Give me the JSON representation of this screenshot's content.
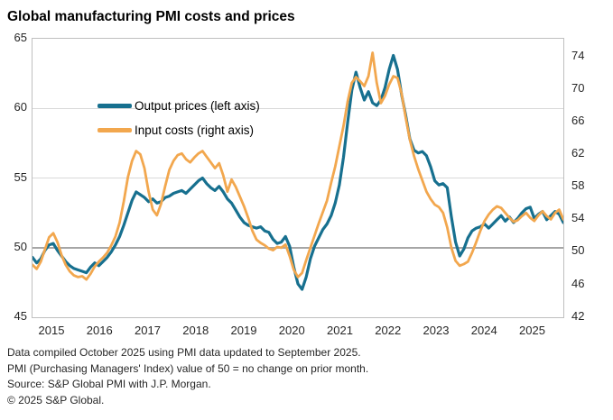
{
  "title": "Global manufacturing PMI costs and prices",
  "colors": {
    "output_prices": "#17708f",
    "input_costs": "#f2a74e",
    "gridline": "#d9d9d9",
    "baseline_50": "#a6a6a6",
    "plot_border": "#bfbfbf",
    "text": "#262626"
  },
  "legend": [
    {
      "label": "Output prices (left axis)",
      "series": "output_prices"
    },
    {
      "label": "Input costs (right axis)",
      "series": "input_costs"
    }
  ],
  "axes": {
    "left_ticks": [
      65,
      60,
      55,
      50,
      45
    ],
    "right_ticks": [
      74,
      70,
      66,
      62,
      58,
      54,
      50,
      46,
      42
    ],
    "years": [
      "2015",
      "2016",
      "2017",
      "2018",
      "2019",
      "2020",
      "2021",
      "2022",
      "2023",
      "2024",
      "2025"
    ],
    "left_range": [
      45,
      65
    ],
    "right_range": [
      42,
      74
    ],
    "baseline_value": 50
  },
  "footnotes": [
    "Data compiled October 2025 using PMI data updated to September 2025.",
    "PMI (Purchasing Managers' Index) value of 50 = no change on prior month.",
    "Source: S&P Global PMI with J.P. Morgan.",
    "© 2025 S&P Global."
  ],
  "chart_data": {
    "type": "line",
    "x_monthly": {
      "start": "2015-01",
      "end": "2025-09",
      "points": 129
    },
    "title": "Global manufacturing PMI costs and prices",
    "grid": "horizontal",
    "legend_position": "top-left-inside",
    "left_ylim": [
      45,
      65
    ],
    "right_ylim": [
      42,
      74
    ],
    "baseline": 50,
    "series": [
      {
        "name": "Output prices (left axis)",
        "axis": "left",
        "color": "#17708f",
        "values": [
          49.3,
          48.9,
          49.2,
          49.8,
          50.2,
          50.3,
          49.8,
          49.4,
          49.0,
          48.7,
          48.5,
          48.4,
          48.3,
          48.2,
          48.6,
          48.9,
          48.7,
          49.0,
          49.3,
          49.7,
          50.2,
          50.8,
          51.6,
          52.5,
          53.4,
          54.0,
          53.8,
          53.6,
          53.3,
          53.5,
          53.2,
          53.3,
          53.6,
          53.7,
          53.9,
          54.0,
          54.1,
          53.9,
          54.2,
          54.5,
          54.8,
          55.0,
          54.6,
          54.3,
          54.1,
          54.4,
          54.0,
          53.5,
          53.2,
          52.7,
          52.2,
          51.8,
          51.6,
          51.5,
          51.4,
          51.5,
          51.2,
          51.1,
          50.6,
          50.3,
          50.4,
          50.8,
          50.1,
          48.6,
          47.4,
          47.0,
          47.9,
          49.2,
          50.1,
          50.7,
          51.3,
          51.7,
          52.3,
          53.2,
          54.5,
          56.5,
          59.0,
          61.3,
          62.6,
          61.5,
          60.6,
          61.2,
          60.4,
          60.2,
          60.6,
          61.5,
          62.8,
          63.8,
          62.8,
          61.0,
          59.5,
          57.8,
          57.0,
          56.8,
          56.9,
          56.6,
          55.8,
          54.8,
          54.5,
          54.6,
          54.3,
          52.2,
          50.4,
          49.4,
          49.9,
          50.7,
          51.2,
          51.4,
          51.5,
          51.7,
          51.4,
          51.7,
          52.0,
          52.3,
          51.9,
          52.2,
          51.8,
          52.1,
          52.5,
          52.8,
          52.9,
          52.1,
          52.4,
          52.6,
          52.0,
          52.3,
          52.6,
          52.4,
          51.8
        ]
      },
      {
        "name": "Input costs (right axis)",
        "axis": "right",
        "color": "#f2a74e",
        "values": [
          48.4,
          47.9,
          48.8,
          50.3,
          51.8,
          52.3,
          51.2,
          49.6,
          48.4,
          47.6,
          47.1,
          46.9,
          47.0,
          46.6,
          47.3,
          48.2,
          48.8,
          49.3,
          49.9,
          50.8,
          51.9,
          53.6,
          56.2,
          59.2,
          61.2,
          62.4,
          62.0,
          60.3,
          57.4,
          55.2,
          54.5,
          55.9,
          58.1,
          60.1,
          61.2,
          61.9,
          62.1,
          61.4,
          61.0,
          61.6,
          62.1,
          62.4,
          61.7,
          61.0,
          60.3,
          60.9,
          59.4,
          57.4,
          58.9,
          58.0,
          56.8,
          55.6,
          54.2,
          52.6,
          51.5,
          51.1,
          50.8,
          50.4,
          50.2,
          50.6,
          50.5,
          50.9,
          49.5,
          47.8,
          46.9,
          47.4,
          49.0,
          50.5,
          52.0,
          53.5,
          54.9,
          56.3,
          58.5,
          60.5,
          63.0,
          65.5,
          68.5,
          70.8,
          71.5,
          71.0,
          70.4,
          71.6,
          74.5,
          70.8,
          68.3,
          69.2,
          70.6,
          71.6,
          71.4,
          69.5,
          66.5,
          63.8,
          61.8,
          60.2,
          58.8,
          57.4,
          56.5,
          55.8,
          55.5,
          54.8,
          53.0,
          50.5,
          48.9,
          48.3,
          48.5,
          48.8,
          49.9,
          51.2,
          52.6,
          53.8,
          54.6,
          55.2,
          55.6,
          55.4,
          54.8,
          54.2,
          53.7,
          53.9,
          54.4,
          54.8,
          54.2,
          53.8,
          54.5,
          55.0,
          54.4,
          54.0,
          54.8,
          55.2,
          54.0
        ]
      }
    ]
  }
}
